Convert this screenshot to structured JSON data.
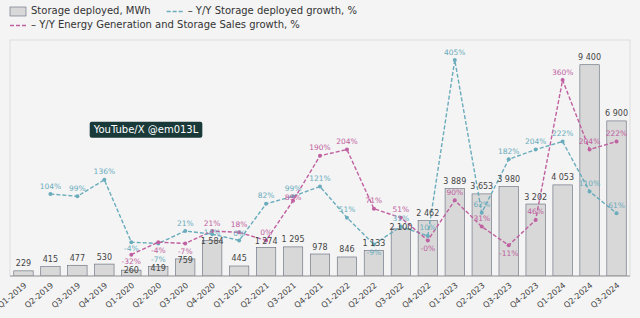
{
  "chart_data": {
    "type": "bar",
    "categories": [
      "Q1-2019",
      "Q2-2019",
      "Q3-2019",
      "Q4-2019",
      "Q1-2020",
      "Q2-2020",
      "Q3-2020",
      "Q4-2020",
      "Q1-2021",
      "Q2-2021",
      "Q3-2021",
      "Q4-2021",
      "Q1-2022",
      "Q2-2022",
      "Q3-2022",
      "Q4-2022",
      "Q1-2023",
      "Q2-2023",
      "Q3-2023",
      "Q4-2023",
      "Q1-2024",
      "Q2-2024",
      "Q3-2024"
    ],
    "series": [
      {
        "name": "Storage deployed, MWh",
        "type": "bar",
        "color": "#d8d8d8",
        "values": [
          229,
          415,
          477,
          530,
          260,
          419,
          759,
          1584,
          445,
          1274,
          1295,
          978,
          846,
          1133,
          2100,
          2462,
          3889,
          3653,
          3980,
          3202,
          4053,
          9400,
          6900
        ],
        "value_labels": [
          "229",
          "415",
          "477",
          "530",
          "260",
          "419",
          "759",
          "1 584",
          "445",
          "1 274",
          "1 295",
          "978",
          "846",
          "1 133",
          "2 100",
          "2 462",
          "3 889",
          "3 653",
          "3 980",
          "3 202",
          "4 053",
          "9 400",
          "6 900"
        ]
      },
      {
        "name": "– Y/Y Storage deployed growth, %",
        "type": "line",
        "axis": "y2",
        "color": "#6aacbc",
        "line_style": "dashed",
        "marker": "circle",
        "values": [
          null,
          104,
          99,
          136,
          -4,
          -7,
          21,
          14,
          0,
          82,
          99,
          121,
          51,
          -9,
          31,
          10,
          405,
          62,
          182,
          204,
          222,
          110,
          61
        ],
        "value_labels": [
          null,
          "104%",
          "99%",
          "136%",
          "-4%",
          "-7%",
          "21%",
          "14%",
          "0%",
          "82%",
          "99%",
          "121%",
          "51%",
          "-9%",
          "31%",
          "10%",
          "405%",
          "62%",
          "182%",
          "204%",
          "222%",
          "110%",
          "61%"
        ]
      },
      {
        "name": "– Y/Y Energy Generation and Storage Sales growth, %",
        "type": "line",
        "axis": "y2",
        "color": "#c060a0",
        "line_style": "dashed",
        "marker": "circle",
        "values": [
          null,
          null,
          null,
          null,
          -32,
          -4,
          -7,
          21,
          18,
          0,
          89,
          190,
          204,
          71,
          51,
          0,
          90,
          31,
          -11,
          46,
          360,
          204,
          222
        ],
        "value_labels": [
          null,
          null,
          null,
          null,
          "-32%",
          "-4%",
          "-7%",
          "21%",
          "18%",
          "0%",
          "89%",
          "190%",
          "204%",
          "71%",
          "51%",
          "-0%",
          "90%",
          "31%",
          "-11%",
          "46%",
          "360%",
          "204%",
          "222%"
        ]
      }
    ],
    "ylim": [
      0,
      10500
    ],
    "y2lim": [
      -80,
      450
    ],
    "annotation": "YouTube/X @em013L",
    "data_labels": true,
    "tick_labels": "x",
    "legend": "upper left",
    "grid": false
  }
}
